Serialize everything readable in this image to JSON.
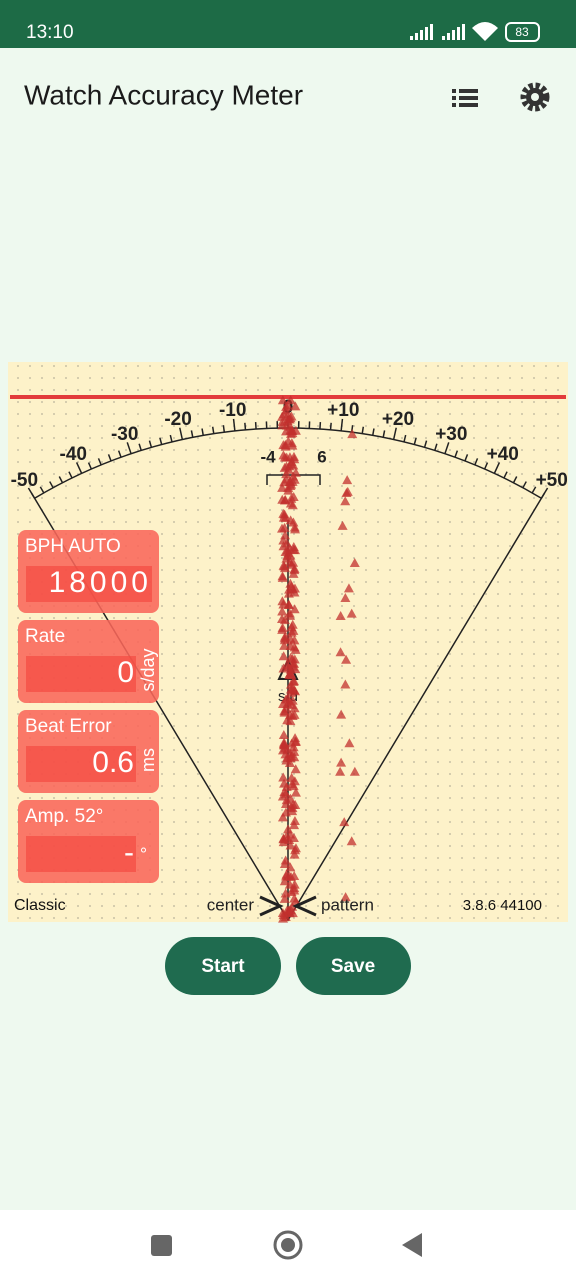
{
  "status_bar": {
    "time": "13:10",
    "battery": "83"
  },
  "app_bar": {
    "title": "Watch Accuracy Meter"
  },
  "dial": {
    "scale_labels": [
      "-50",
      "-40",
      "-30",
      "-20",
      "-10",
      "0",
      "+10",
      "+20",
      "+30",
      "+40",
      "+50"
    ],
    "bracket_labels": [
      "-4",
      "6"
    ],
    "center_label": "s/d"
  },
  "panels": [
    {
      "label": "BPH AUTO",
      "value": "18000"
    },
    {
      "label": "Rate",
      "value": "0",
      "unit": "s/day"
    },
    {
      "label": "Beat Error",
      "value": "0.6",
      "unit": "ms"
    },
    {
      "label": "Amp. 52°",
      "value": "-",
      "unit": "°"
    }
  ],
  "footer_labels": {
    "mode": "Classic",
    "center": "center",
    "pattern": "pattern",
    "version": "3.8.6 44100"
  },
  "buttons": [
    "Start",
    "Save"
  ]
}
